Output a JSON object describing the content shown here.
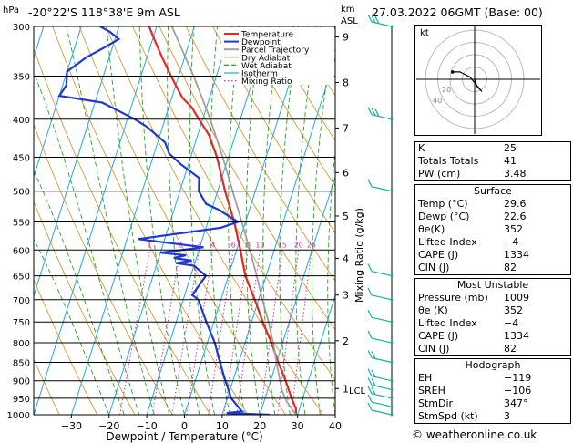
{
  "header": {
    "location": "-20°22'S 118°38'E 9m ASL",
    "datetime": "27.03.2022 06GMT (Base: 00)",
    "hpa_label": "hPa",
    "km_label": "km",
    "asl_label": "ASL"
  },
  "chart_data": {
    "type": "line",
    "title": "Skew-T log-P diagram",
    "xlabel": "Dewpoint / Temperature (°C)",
    "ylabel": "hPa",
    "y2label": "Mixing Ratio (g/kg)",
    "x_ticks": [
      -30,
      -20,
      -10,
      0,
      10,
      20,
      30,
      40
    ],
    "x_tick_labels": [
      "−30",
      "−20",
      "−10",
      "0",
      "10",
      "20",
      "30",
      "40"
    ],
    "pressure_levels": [
      300,
      350,
      400,
      450,
      500,
      550,
      600,
      650,
      700,
      750,
      800,
      850,
      900,
      950,
      1000
    ],
    "pressure_labels": [
      "300",
      "350",
      "400",
      "450",
      "500",
      "550",
      "600",
      "650",
      "700",
      "750",
      "800",
      "850",
      "900",
      "950",
      "1000"
    ],
    "km_ticks": [
      {
        "p": 922,
        "label": "1"
      },
      {
        "p": 795,
        "label": "2"
      },
      {
        "p": 690,
        "label": "3"
      },
      {
        "p": 616,
        "label": "4"
      },
      {
        "p": 540,
        "label": "5"
      },
      {
        "p": 472,
        "label": "6"
      },
      {
        "p": 411,
        "label": "7"
      },
      {
        "p": 357,
        "label": "8"
      },
      {
        "p": 310,
        "label": "9"
      }
    ],
    "lcl_label": "LCL",
    "lcl_p": 927,
    "mixing_ratio_labels": [
      "1",
      "2",
      "3",
      "4",
      "6",
      "8",
      "10",
      "15",
      "20",
      "25"
    ],
    "legend": [
      "Temperature",
      "Dewpoint",
      "Parcel Trajectory",
      "Dry Adiabat",
      "Wet Adiabat",
      "Isotherm",
      "Mixing Ratio"
    ],
    "series": [
      {
        "name": "Temperature",
        "color": "#e8281e",
        "points": [
          [
            1000,
            29.6
          ],
          [
            980,
            29
          ],
          [
            950,
            27
          ],
          [
            900,
            24
          ],
          [
            850,
            20.5
          ],
          [
            800,
            17
          ],
          [
            750,
            13
          ],
          [
            700,
            9
          ],
          [
            650,
            4.5
          ],
          [
            600,
            1
          ],
          [
            550,
            -3
          ],
          [
            500,
            -8
          ],
          [
            450,
            -13
          ],
          [
            420,
            -17
          ],
          [
            400,
            -21
          ],
          [
            385,
            -24
          ],
          [
            375,
            -27
          ],
          [
            360,
            -30
          ],
          [
            345,
            -33
          ],
          [
            330,
            -36
          ],
          [
            315,
            -39
          ],
          [
            300,
            -42
          ]
        ]
      },
      {
        "name": "Dewpoint",
        "color": "#1f36d6",
        "points": [
          [
            1000,
            22.6
          ],
          [
            995,
            11
          ],
          [
            990,
            15
          ],
          [
            970,
            13
          ],
          [
            950,
            11
          ],
          [
            900,
            8
          ],
          [
            850,
            5
          ],
          [
            800,
            2
          ],
          [
            750,
            -2
          ],
          [
            700,
            -6
          ],
          [
            690,
            -8
          ],
          [
            650,
            -6
          ],
          [
            630,
            -10
          ],
          [
            625,
            -15
          ],
          [
            620,
            -11
          ],
          [
            615,
            -16
          ],
          [
            610,
            -13
          ],
          [
            605,
            -20
          ],
          [
            595,
            -9
          ],
          [
            580,
            -27
          ],
          [
            560,
            -6
          ],
          [
            550,
            -2
          ],
          [
            530,
            -8
          ],
          [
            520,
            -12
          ],
          [
            500,
            -15
          ],
          [
            480,
            -16
          ],
          [
            460,
            -22
          ],
          [
            445,
            -26
          ],
          [
            430,
            -28
          ],
          [
            410,
            -34
          ],
          [
            400,
            -38
          ],
          [
            380,
            -48
          ],
          [
            372,
            -60
          ],
          [
            360,
            -59
          ],
          [
            345,
            -60
          ],
          [
            330,
            -56
          ],
          [
            320,
            -52
          ],
          [
            312,
            -49
          ],
          [
            305,
            -52
          ],
          [
            300,
            -55
          ]
        ]
      },
      {
        "name": "Parcel Trajectory",
        "color": "#a0a0a0",
        "points": [
          [
            1000,
            29.6
          ],
          [
            960,
            26
          ],
          [
            927,
            23.8
          ],
          [
            900,
            22.5
          ],
          [
            850,
            20
          ],
          [
            800,
            17.5
          ],
          [
            750,
            14.5
          ],
          [
            700,
            11
          ],
          [
            650,
            7.5
          ],
          [
            600,
            3.5
          ],
          [
            550,
            -1
          ],
          [
            500,
            -6
          ],
          [
            450,
            -11.5
          ],
          [
            400,
            -18
          ],
          [
            350,
            -26
          ],
          [
            300,
            -36
          ]
        ]
      }
    ],
    "wind_barbs": [
      {
        "p": 1000,
        "speed_kt": 10
      },
      {
        "p": 975,
        "speed_kt": 10
      },
      {
        "p": 950,
        "speed_kt": 15
      },
      {
        "p": 925,
        "speed_kt": 15
      },
      {
        "p": 900,
        "speed_kt": 15
      },
      {
        "p": 850,
        "speed_kt": 20
      },
      {
        "p": 800,
        "speed_kt": 10
      },
      {
        "p": 750,
        "speed_kt": 10
      },
      {
        "p": 700,
        "speed_kt": 10
      },
      {
        "p": 650,
        "speed_kt": 10
      },
      {
        "p": 500,
        "speed_kt": 10
      },
      {
        "p": 400,
        "speed_kt": 25
      },
      {
        "p": 300,
        "speed_kt": 25
      }
    ],
    "hodograph": {
      "label": "kt",
      "ring_labels": [
        "20",
        "40"
      ],
      "trace": [
        [
          0,
          0
        ],
        [
          1,
          -3
        ],
        [
          3,
          -5
        ],
        [
          -2,
          1
        ],
        [
          -6,
          3
        ],
        [
          -9,
          3
        ]
      ]
    }
  },
  "indices": {
    "rows": [
      {
        "label": "K",
        "value": "25"
      },
      {
        "label": "Totals Totals",
        "value": "41"
      },
      {
        "label": "PW (cm)",
        "value": "3.48"
      }
    ]
  },
  "surface": {
    "title": "Surface",
    "rows": [
      {
        "label": "Temp (°C)",
        "value": "29.6"
      },
      {
        "label": "Dewp (°C)",
        "value": "22.6"
      },
      {
        "label": "θe(K)",
        "value": "352"
      },
      {
        "label": "Lifted Index",
        "value": "−4"
      },
      {
        "label": "CAPE (J)",
        "value": "1334"
      },
      {
        "label": "CIN (J)",
        "value": "82"
      }
    ]
  },
  "unstable": {
    "title": "Most Unstable",
    "rows": [
      {
        "label": "Pressure (mb)",
        "value": "1009"
      },
      {
        "label": "θe (K)",
        "value": "352"
      },
      {
        "label": "Lifted Index",
        "value": "−4"
      },
      {
        "label": "CAPE (J)",
        "value": "1334"
      },
      {
        "label": "CIN (J)",
        "value": "82"
      }
    ]
  },
  "hodograph_stats": {
    "title": "Hodograph",
    "rows": [
      {
        "label": "EH",
        "value": "−119"
      },
      {
        "label": "SREH",
        "value": "−106"
      },
      {
        "label": "StmDir",
        "value": "347°"
      },
      {
        "label": "StmSpd (kt)",
        "value": "3"
      }
    ]
  },
  "credit": "© weatheronline.co.uk",
  "colors": {
    "temperature": "#e8281e",
    "dewpoint": "#1f36d6",
    "parcel": "#a0a0a0",
    "dry_adiabat": "#d49a3a",
    "wet_adiabat": "#2aa02a",
    "isotherm": "#22a8e0",
    "mixing_ratio": "#d0389a",
    "wind": "#18b0a0"
  }
}
